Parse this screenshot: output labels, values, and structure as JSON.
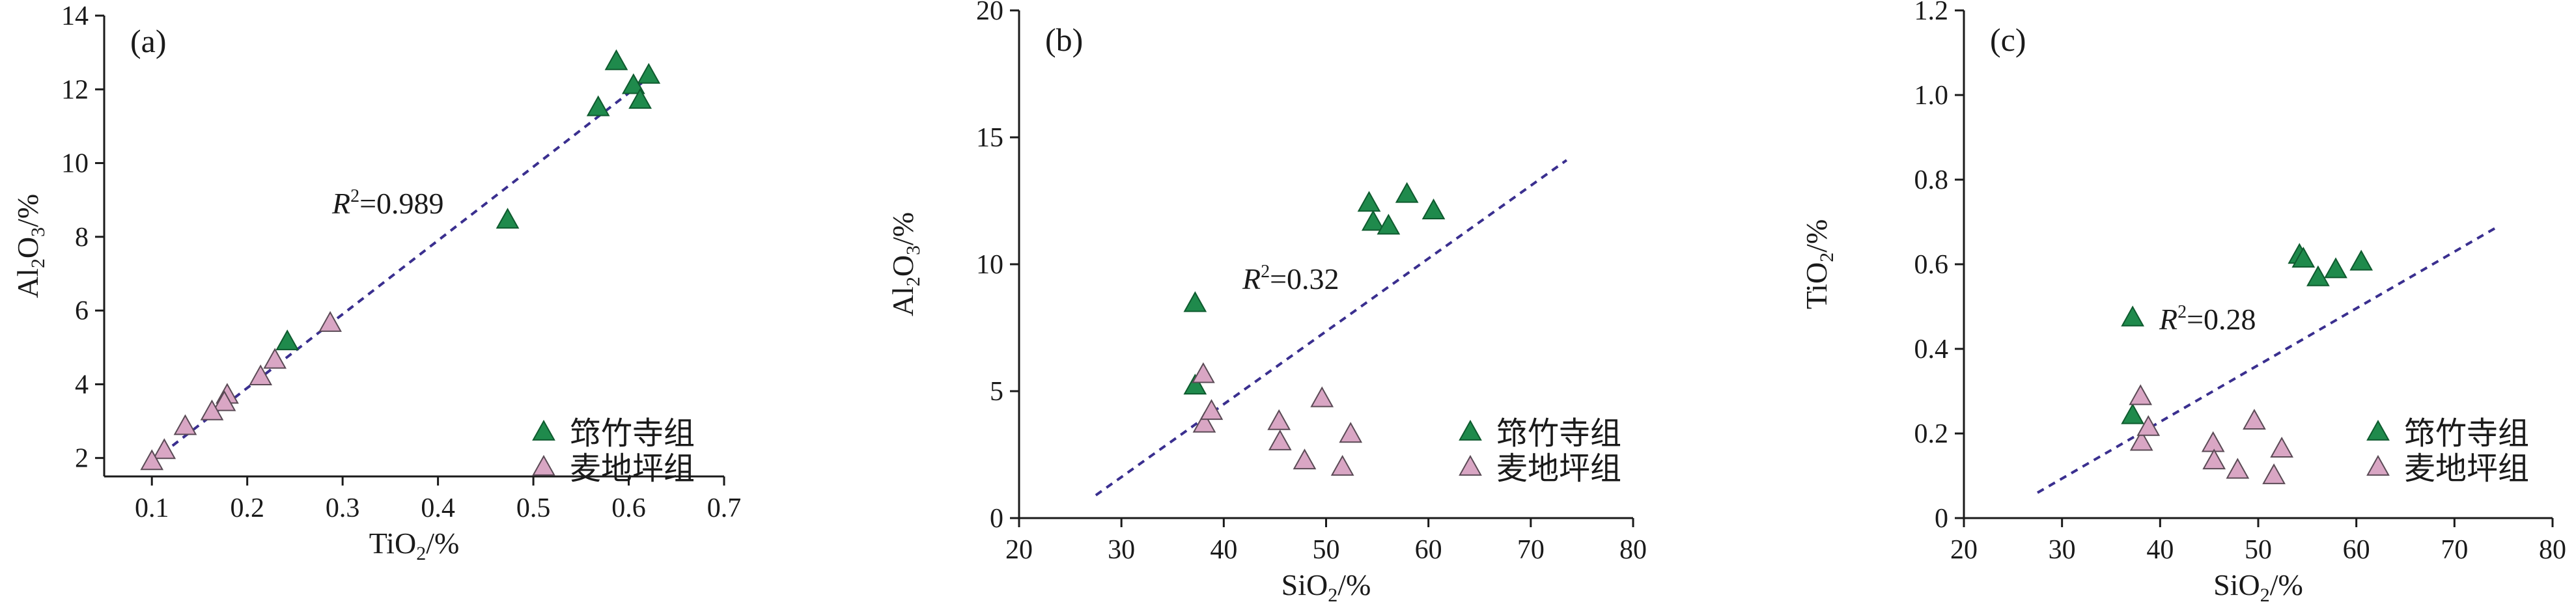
{
  "chart_data": [
    {
      "type": "scatter",
      "panel_label": "(a)",
      "xlabel": {
        "base": "TiO",
        "sub": "2",
        "rest": "/%"
      },
      "ylabel": {
        "p1": "Al",
        "s1": "2",
        "p2": "O",
        "s2": "3",
        "rest": "/%"
      },
      "xlim": [
        0.05,
        0.7
      ],
      "ylim": [
        1.5,
        14
      ],
      "x_ticks": [
        0.1,
        0.2,
        0.3,
        0.4,
        0.5,
        0.6,
        0.7
      ],
      "y_ticks": [
        2,
        4,
        6,
        8,
        10,
        12,
        14
      ],
      "x_tick_labels": [
        "0.1",
        "0.2",
        "0.3",
        "0.4",
        "0.5",
        "0.6",
        "0.7"
      ],
      "y_tick_labels": [
        "2",
        "4",
        "6",
        "8",
        "10",
        "12",
        "14"
      ],
      "annotation": {
        "r": "R",
        "sup": "2",
        "val": "=0.989"
      },
      "fit": {
        "x": [
          0.1,
          0.625
        ],
        "y": [
          1.9,
          12.4
        ]
      },
      "legend": "bottom-right",
      "series": [
        {
          "name": "筇竹寺组",
          "color": "#1f8a4c",
          "points": [
            [
              0.587,
              12.75
            ],
            [
              0.621,
              12.38
            ],
            [
              0.605,
              12.1
            ],
            [
              0.612,
              11.7
            ],
            [
              0.568,
              11.5
            ],
            [
              0.473,
              8.45
            ],
            [
              0.242,
              5.15
            ]
          ]
        },
        {
          "name": "麦地坪组",
          "color": "#d9a6c4",
          "points": [
            [
              0.287,
              5.65
            ],
            [
              0.229,
              4.65
            ],
            [
              0.214,
              4.2
            ],
            [
              0.179,
              3.7
            ],
            [
              0.176,
              3.5
            ],
            [
              0.163,
              3.25
            ],
            [
              0.135,
              2.85
            ],
            [
              0.113,
              2.2
            ],
            [
              0.1,
              1.9
            ]
          ]
        }
      ]
    },
    {
      "type": "scatter",
      "panel_label": "(b)",
      "xlabel": {
        "base": "SiO",
        "sub": "2",
        "rest": "/%"
      },
      "ylabel": {
        "p1": "Al",
        "s1": "2",
        "p2": "O",
        "s2": "3",
        "rest": "/%"
      },
      "xlim": [
        20,
        80
      ],
      "ylim": [
        0,
        20
      ],
      "x_ticks": [
        20,
        30,
        40,
        50,
        60,
        70,
        80
      ],
      "y_ticks": [
        0,
        5,
        10,
        15,
        20
      ],
      "x_tick_labels": [
        "20",
        "30",
        "40",
        "50",
        "60",
        "70",
        "80"
      ],
      "y_tick_labels": [
        "0",
        "5",
        "10",
        "15",
        "20"
      ],
      "annotation": {
        "r": "R",
        "sup": "2",
        "val": "=0.32"
      },
      "fit": {
        "x": [
          27.5,
          73.5
        ],
        "y": [
          0.9,
          14.1
        ]
      },
      "legend": "bottom-right",
      "series": [
        {
          "name": "筇竹寺组",
          "color": "#1f8a4c",
          "points": [
            [
              37.2,
              8.45
            ],
            [
              37.2,
              5.2
            ],
            [
              54.2,
              12.4
            ],
            [
              54.6,
              11.65
            ],
            [
              56.1,
              11.5
            ],
            [
              57.9,
              12.75
            ],
            [
              60.5,
              12.1
            ]
          ]
        },
        {
          "name": "麦地坪组",
          "color": "#d9a6c4",
          "points": [
            [
              38.0,
              5.65
            ],
            [
              38.1,
              3.7
            ],
            [
              38.8,
              4.2
            ],
            [
              45.4,
              3.8
            ],
            [
              45.5,
              3.0
            ],
            [
              47.9,
              2.25
            ],
            [
              49.6,
              4.7
            ],
            [
              51.6,
              2.0
            ],
            [
              52.4,
              3.3
            ]
          ]
        }
      ]
    },
    {
      "type": "scatter",
      "panel_label": "(c)",
      "xlabel": {
        "base": "SiO",
        "sub": "2",
        "rest": "/%"
      },
      "ylabel": {
        "p1": "TiO",
        "s1": "2",
        "p2": "",
        "s2": "",
        "rest": "/%"
      },
      "xlim": [
        20,
        80
      ],
      "ylim": [
        0,
        1.2
      ],
      "x_ticks": [
        20,
        30,
        40,
        50,
        60,
        70,
        80
      ],
      "y_ticks": [
        0,
        0.2,
        0.4,
        0.6,
        0.8,
        1.0,
        1.2
      ],
      "x_tick_labels": [
        "20",
        "30",
        "40",
        "50",
        "60",
        "70",
        "80"
      ],
      "y_tick_labels": [
        "0",
        "0.2",
        "0.4",
        "0.6",
        "0.8",
        "1.0",
        "1.2"
      ],
      "annotation": {
        "r": "R",
        "sup": "2",
        "val": "=0.28"
      },
      "fit": {
        "x": [
          27.5,
          74.5
        ],
        "y": [
          0.06,
          0.69
        ]
      },
      "legend": "bottom-right",
      "series": [
        {
          "name": "筇竹寺组",
          "color": "#1f8a4c",
          "points": [
            [
              37.2,
              0.473
            ],
            [
              37.2,
              0.242
            ],
            [
              54.2,
              0.621
            ],
            [
              54.6,
              0.612
            ],
            [
              56.1,
              0.568
            ],
            [
              57.9,
              0.587
            ],
            [
              60.5,
              0.605
            ]
          ]
        },
        {
          "name": "麦地坪组",
          "color": "#d9a6c4",
          "points": [
            [
              38.0,
              0.287
            ],
            [
              38.1,
              0.179
            ],
            [
              38.8,
              0.214
            ],
            [
              45.4,
              0.176
            ],
            [
              45.5,
              0.135
            ],
            [
              47.9,
              0.113
            ],
            [
              49.6,
              0.229
            ],
            [
              51.6,
              0.1
            ],
            [
              52.4,
              0.163
            ]
          ]
        }
      ]
    }
  ]
}
